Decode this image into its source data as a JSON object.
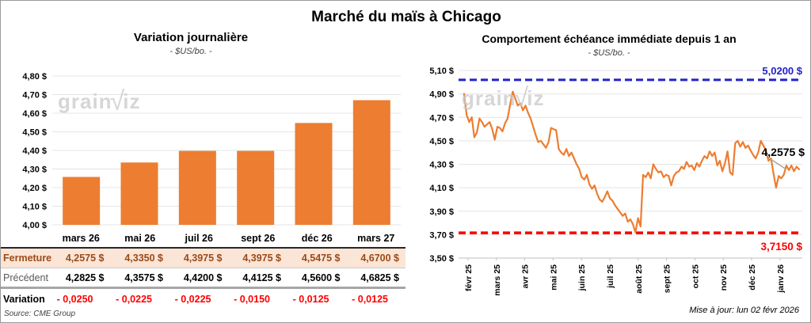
{
  "title": "Marché du maïs à Chicago",
  "watermark": {
    "part1": "grain",
    "mark": "√",
    "part2": "iz"
  },
  "left_chart": {
    "title": "Variation journalière",
    "subtitle": "- $US/bo. -",
    "y_ticks": [
      "4,80 $",
      "4,70 $",
      "4,60 $",
      "4,50 $",
      "4,40 $",
      "4,30 $",
      "4,20 $",
      "4,10 $",
      "4,00 $"
    ],
    "categories": [
      "mars 26",
      "mai 26",
      "juil 26",
      "sept 26",
      "déc 26",
      "mars 27"
    ]
  },
  "table": {
    "rows": [
      {
        "id": "fermeture",
        "label": "Fermeture",
        "values": [
          "4,2575 $",
          "4,3350 $",
          "4,3975 $",
          "4,3975 $",
          "4,5475 $",
          "4,6700 $"
        ]
      },
      {
        "id": "precedent",
        "label": "Précédent",
        "values": [
          "4,2825 $",
          "4,3575 $",
          "4,4200 $",
          "4,4125 $",
          "4,5600 $",
          "4,6825 $"
        ]
      },
      {
        "id": "variation",
        "label": "Variation",
        "values": [
          "- 0,0250",
          "- 0,0225",
          "- 0,0225",
          "- 0,0150",
          "- 0,0125",
          "- 0,0125"
        ]
      }
    ],
    "source": "Source: CME Group"
  },
  "right_chart": {
    "title": "Comportement échéance immédiate depuis 1 an",
    "subtitle": "- $US/bo. -",
    "y_ticks": [
      "5,10 $",
      "4,90 $",
      "4,70 $",
      "4,50 $",
      "4,30 $",
      "4,10 $",
      "3,90 $",
      "3,70 $",
      "3,50 $"
    ],
    "x_ticks": [
      "févr 25",
      "mars 25",
      "avr 25",
      "mai 25",
      "juin 25",
      "juil 25",
      "août 25",
      "sept 25",
      "oct 25",
      "nov 25",
      "déc 25",
      "janv 26"
    ],
    "high_label": "5,0200 $",
    "low_label": "3,7150 $",
    "last_label": "4,2575 $"
  },
  "footer": {
    "updated": "Mise à jour: lun 02 févr 2026"
  },
  "colors": {
    "orange": "#ED7D31",
    "blue": "#2222cc",
    "red": "#ff0000",
    "peach": "#FBE5D6",
    "brown": "#9c4a17",
    "grid": "#e4e4e4",
    "axis": "#bfbfbf",
    "leader": "#a6a6a6"
  },
  "chart_data": [
    {
      "type": "bar",
      "title": "Variation journalière",
      "subtitle": "- $US/bo. -",
      "categories": [
        "mars 26",
        "mai 26",
        "juil 26",
        "sept 26",
        "déc 26",
        "mars 27"
      ],
      "values": [
        4.2575,
        4.335,
        4.3975,
        4.3975,
        4.5475,
        4.67
      ],
      "ylabel": "$US/bo.",
      "ylim": [
        4.0,
        4.8
      ],
      "ytick_step": 0.1,
      "grid": true,
      "bar_color": "#ED7D31"
    },
    {
      "type": "line",
      "title": "Comportement échéance immédiate depuis 1 an",
      "subtitle": "- $US/bo. -",
      "x_months": [
        "févr 25",
        "mars 25",
        "avr 25",
        "mai 25",
        "juin 25",
        "juil 25",
        "août 25",
        "sept 25",
        "oct 25",
        "nov 25",
        "déc 25",
        "janv 26"
      ],
      "ylim": [
        3.5,
        5.1
      ],
      "ytick_step": 0.2,
      "grid": true,
      "resistance": 5.02,
      "support": 3.715,
      "last_value": 4.2575,
      "series": [
        {
          "name": "échéance immédiate",
          "values": [
            4.9,
            4.72,
            4.66,
            4.7,
            4.53,
            4.57,
            4.69,
            4.66,
            4.62,
            4.64,
            4.66,
            4.6,
            4.51,
            4.62,
            4.61,
            4.58,
            4.65,
            4.69,
            4.81,
            4.92,
            4.86,
            4.8,
            4.82,
            4.76,
            4.8,
            4.74,
            4.69,
            4.62,
            4.55,
            4.49,
            4.5,
            4.47,
            4.44,
            4.49,
            4.61,
            4.6,
            4.59,
            4.43,
            4.4,
            4.38,
            4.43,
            4.37,
            4.4,
            4.35,
            4.3,
            4.26,
            4.19,
            4.17,
            4.21,
            4.13,
            4.09,
            4.12,
            4.05,
            4.0,
            3.98,
            4.02,
            4.07,
            4.01,
            3.99,
            3.95,
            3.92,
            3.89,
            3.86,
            3.88,
            3.81,
            3.83,
            3.79,
            3.72,
            3.84,
            3.77,
            4.21,
            4.19,
            4.23,
            4.18,
            4.3,
            4.26,
            4.23,
            4.24,
            4.19,
            4.21,
            4.2,
            4.12,
            4.2,
            4.23,
            4.24,
            4.28,
            4.26,
            4.32,
            4.28,
            4.29,
            4.25,
            4.31,
            4.28,
            4.33,
            4.37,
            4.35,
            4.41,
            4.37,
            4.4,
            4.29,
            4.33,
            4.24,
            4.31,
            4.41,
            4.23,
            4.21,
            4.48,
            4.5,
            4.45,
            4.49,
            4.44,
            4.46,
            4.42,
            4.38,
            4.35,
            4.4,
            4.5,
            4.46,
            4.42,
            4.33,
            4.35,
            4.22,
            4.1,
            4.2,
            4.18,
            4.21,
            4.29,
            4.25,
            4.29,
            4.24,
            4.28,
            4.2575
          ]
        }
      ]
    }
  ]
}
